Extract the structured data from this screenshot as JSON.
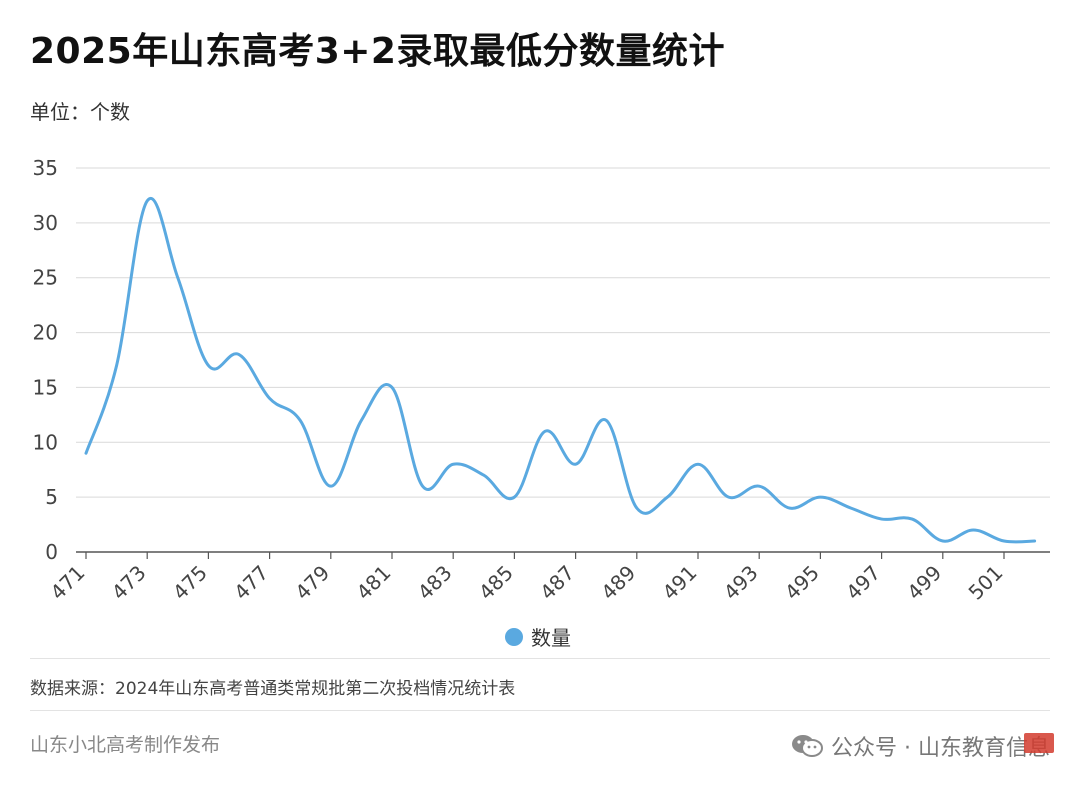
{
  "title": "2025年山东高考3+2录取最低分数量统计",
  "unit_label": "单位：个数",
  "source": "数据来源：2024年山东高考普通类常规批第二次投档情况统计表",
  "footer": {
    "left": "山东小北高考制作发布",
    "right": "公众号 · 山东教育信息"
  },
  "colors": {
    "series": "#5aa9e0",
    "legend_dot": "#5aa9e0"
  },
  "chart_data": {
    "type": "line",
    "title": "2025年山东高考3+2录取最低分数量统计",
    "xlabel": "",
    "ylabel": "单位：个数",
    "x": [
      471,
      472,
      473,
      474,
      475,
      476,
      477,
      478,
      479,
      480,
      481,
      482,
      483,
      484,
      485,
      486,
      487,
      488,
      489,
      490,
      491,
      492,
      493,
      494,
      495,
      496,
      497,
      498,
      499,
      500,
      501,
      502
    ],
    "series": [
      {
        "name": "数量",
        "values": [
          9,
          17,
          32,
          25,
          17,
          18,
          14,
          12,
          6,
          12,
          15,
          6,
          8,
          7,
          5,
          11,
          8,
          12,
          4,
          5,
          8,
          5,
          6,
          4,
          5,
          4,
          3,
          3,
          1,
          2,
          1,
          1
        ]
      }
    ],
    "x_ticks": [
      "471",
      "473",
      "475",
      "477",
      "479",
      "481",
      "483",
      "485",
      "487",
      "489",
      "491",
      "493",
      "495",
      "497",
      "499",
      "501"
    ],
    "y_ticks": [
      "0",
      "5",
      "10",
      "15",
      "20",
      "25",
      "30",
      "35"
    ],
    "ylim": [
      0,
      35
    ],
    "grid": true,
    "legend_position": "bottom"
  }
}
